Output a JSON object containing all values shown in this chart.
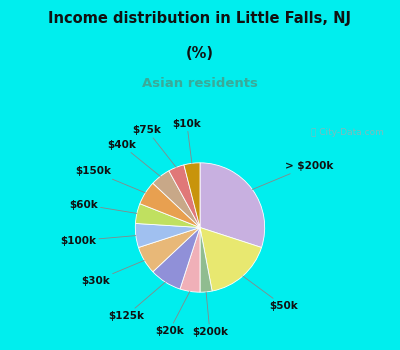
{
  "title_line1": "Income distribution in Little Falls, NJ",
  "title_line2": "(%)",
  "subtitle": "Asian residents",
  "title_color": "#111111",
  "subtitle_color": "#3aaa99",
  "bg_top_color": "#00eeee",
  "bg_bottom_color": "#d8f0dc",
  "watermark": "ⓘ City-Data.com",
  "labels": [
    "> $200k",
    "$50k",
    "$200k",
    "$20k",
    "$125k",
    "$30k",
    "$100k",
    "$60k",
    "$150k",
    "$40k",
    "$75k",
    "$10k"
  ],
  "values": [
    30,
    17,
    3,
    5,
    8,
    7,
    6,
    5,
    6,
    5,
    4,
    4
  ],
  "colors": [
    "#c8b0e0",
    "#e8e870",
    "#90bc90",
    "#f0b0b8",
    "#9090d8",
    "#e8b878",
    "#a0c0f0",
    "#c0e060",
    "#e8a050",
    "#c8a888",
    "#e07878",
    "#c8940c"
  ],
  "label_fontsize": 7.5,
  "startangle": 90
}
